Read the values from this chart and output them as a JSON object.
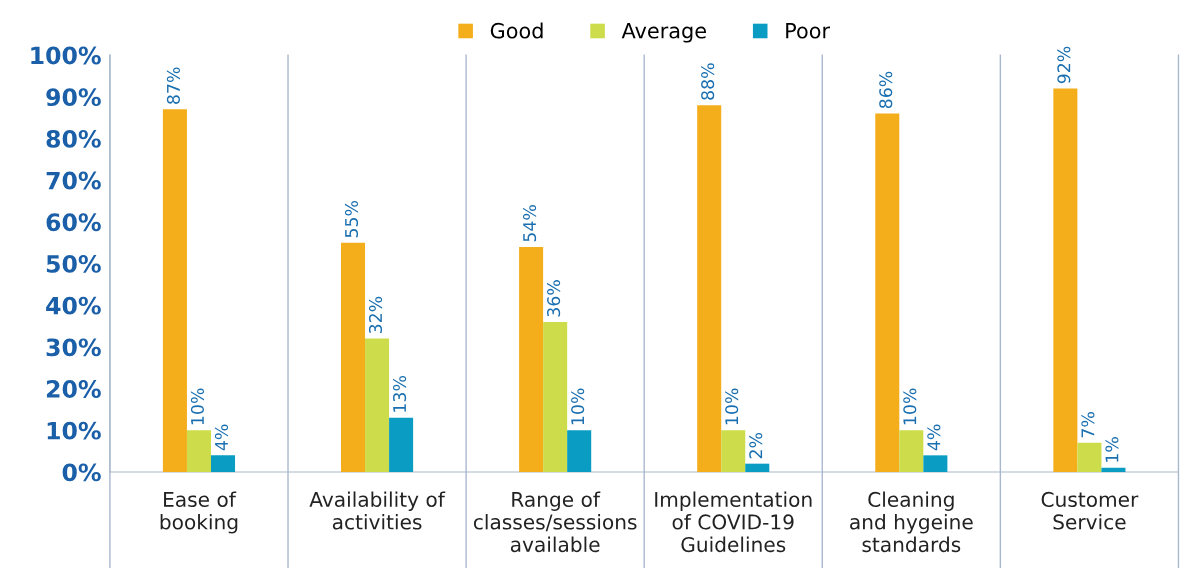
{
  "chart_data": {
    "type": "bar",
    "categories": [
      "Ease of\nbooking",
      "Availability of\nactivities",
      "Range of\nclasses/sessions\navailable",
      "Implementation\nof COVID-19\nGuidelines",
      "Cleaning\nand hygeine\nstandards",
      "Customer\nService"
    ],
    "series": [
      {
        "name": "Good",
        "color": "#f5ae1b",
        "values": [
          87,
          55,
          54,
          88,
          86,
          92
        ]
      },
      {
        "name": "Average",
        "color": "#cddc4a",
        "values": [
          10,
          32,
          36,
          10,
          10,
          7
        ]
      },
      {
        "name": "Poor",
        "color": "#0a9cc2",
        "values": [
          4,
          13,
          10,
          2,
          4,
          1
        ]
      }
    ],
    "ylim": [
      0,
      100
    ],
    "yticks": [
      {
        "value": 0,
        "label": "0%"
      },
      {
        "value": 10,
        "label": "10%"
      },
      {
        "value": 20,
        "label": "20%"
      },
      {
        "value": 30,
        "label": "30%"
      },
      {
        "value": 40,
        "label": "40%"
      },
      {
        "value": 50,
        "label": "50%"
      },
      {
        "value": 60,
        "label": "60%"
      },
      {
        "value": 70,
        "label": "70%"
      },
      {
        "value": 80,
        "label": "80%"
      },
      {
        "value": 90,
        "label": "90%"
      },
      {
        "value": 100,
        "label": "100%"
      }
    ],
    "value_labels": [
      [
        "87%",
        "55%",
        "54%",
        "88%",
        "86%",
        "92%"
      ],
      [
        "10%",
        "32%",
        "36%",
        "10%",
        "10%",
        "7%"
      ],
      [
        "4%",
        "13%",
        "10%",
        "2%",
        "4%",
        "1%"
      ]
    ],
    "grid": "x",
    "legend": "top"
  }
}
